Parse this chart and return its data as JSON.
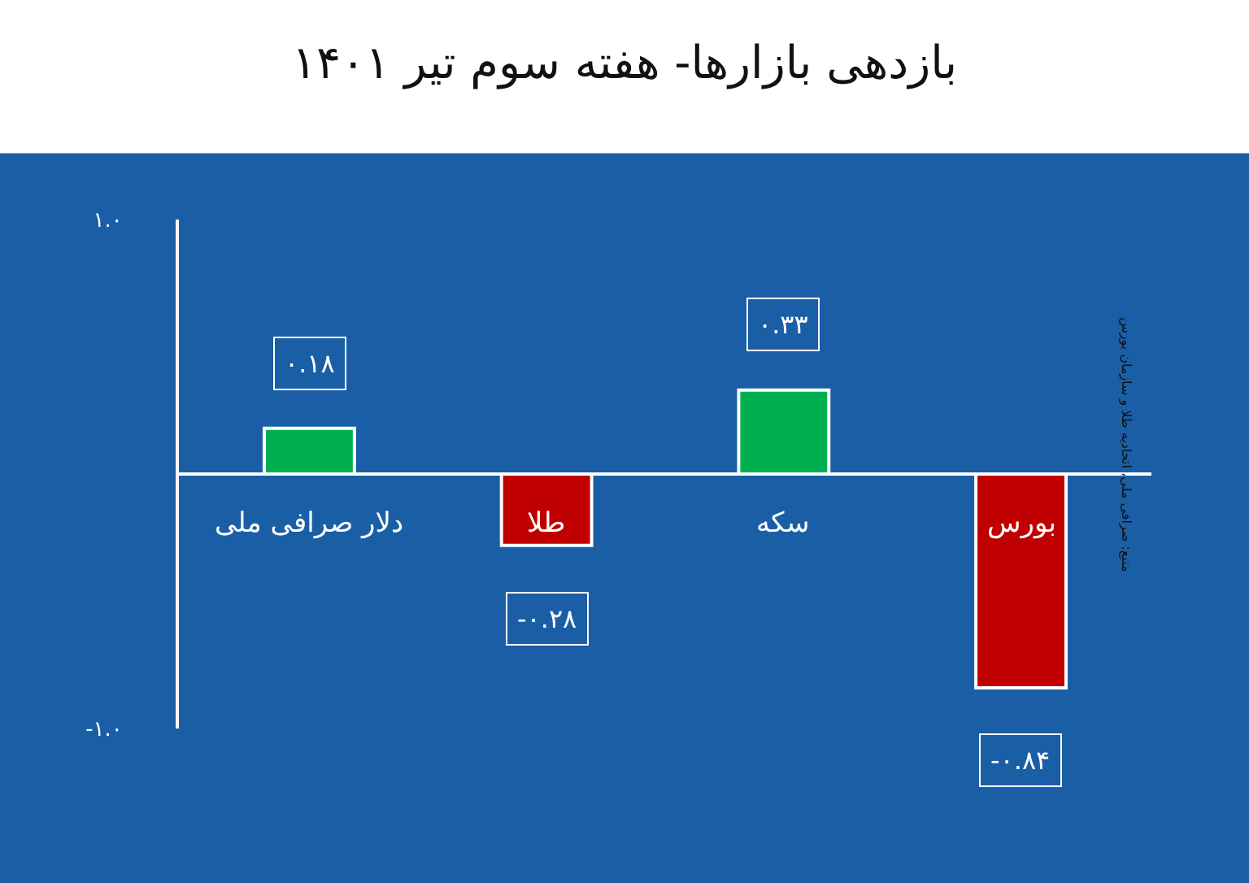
{
  "chart_data": {
    "type": "bar",
    "title": "بازدهی بازارها- هفته سوم تیر ۱۴۰۱",
    "categories": [
      "دلار صرافی ملی",
      "طلا",
      "سکه",
      "بورس"
    ],
    "values": [
      0.18,
      -0.28,
      0.33,
      -0.84
    ],
    "colors": [
      "#00b050",
      "#c00000",
      "#00b050",
      "#c00000"
    ],
    "value_labels": [
      "۰.۱۸",
      "-۰.۲۸",
      "۰.۳۳",
      "-۰.۸۴"
    ],
    "ylim": [
      -1.0,
      1.0
    ],
    "yticks": [
      {
        "value": 1.0,
        "label": "۱.۰"
      },
      {
        "value": -1.0,
        "label": "-۱.۰"
      }
    ],
    "grid": false,
    "legend": false,
    "annotations": [
      "منبع: صرافی ملی، اتحادیه طلا و سازمان بورس"
    ]
  }
}
